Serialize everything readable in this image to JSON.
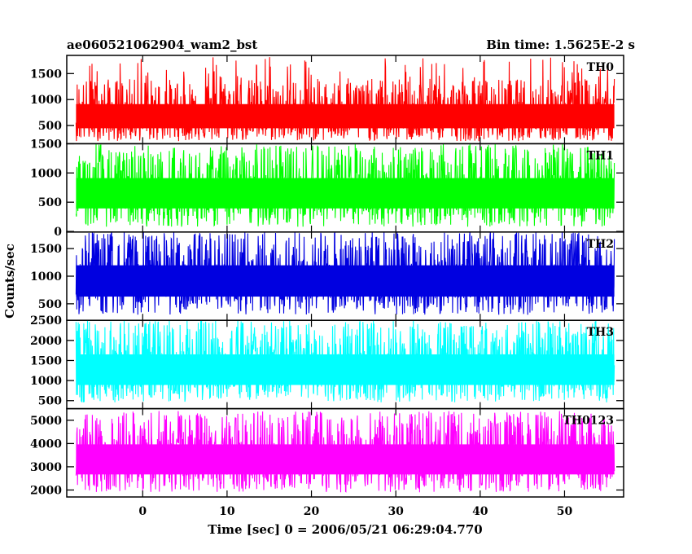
{
  "header": {
    "title": "ae060521062904_wam2_bst",
    "bin_time": "Bin time: 1.5625E-2 s"
  },
  "chart_data": {
    "type": "line",
    "xlabel": "Time [sec] 0 = 2006/05/21 06:29:04.770",
    "ylabel": "Counts/sec",
    "xlim": [
      -9,
      57
    ],
    "x_ticks": [
      "0",
      "10",
      "20",
      "30",
      "40",
      "50"
    ],
    "x_tick_values": [
      0,
      10,
      20,
      30,
      40,
      50
    ],
    "data_x_range": [
      -7.9,
      55.9
    ],
    "grid": false,
    "panels": [
      {
        "name": "TH0",
        "color": "#ff0000",
        "ylim": [
          150,
          1850
        ],
        "y_ticks": [
          "500",
          "1000",
          "1500"
        ],
        "y_tick_values": [
          500,
          1000,
          1500
        ],
        "mean": 650,
        "typical_min": 200,
        "typical_max": 1400,
        "peak": 1850
      },
      {
        "name": "TH1",
        "color": "#00ff00",
        "ylim": [
          -10,
          1500
        ],
        "y_ticks": [
          "0",
          "500",
          "1000",
          "1500"
        ],
        "y_tick_values": [
          0,
          500,
          1000,
          1500
        ],
        "mean": 650,
        "typical_min": 80,
        "typical_max": 1400,
        "peak": 1500
      },
      {
        "name": "TH2",
        "color": "#0000e0",
        "ylim": [
          200,
          1800
        ],
        "y_ticks": [
          "500",
          "1000",
          "1500"
        ],
        "y_tick_values": [
          500,
          1000,
          1500
        ],
        "mean": 900,
        "typical_min": 300,
        "typical_max": 1750,
        "peak": 1800
      },
      {
        "name": "TH3",
        "color": "#00ffff",
        "ylim": [
          300,
          2500
        ],
        "y_ticks": [
          "500",
          "1000",
          "1500",
          "2000",
          "2500"
        ],
        "y_tick_values": [
          500,
          1000,
          1500,
          2000,
          2500
        ],
        "mean": 1250,
        "typical_min": 450,
        "typical_max": 2400,
        "peak": 2500
      },
      {
        "name": "TH0123",
        "color": "#ff00ff",
        "ylim": [
          1700,
          5500
        ],
        "y_ticks": [
          "2000",
          "3000",
          "4000",
          "5000"
        ],
        "y_tick_values": [
          2000,
          3000,
          4000,
          5000
        ],
        "mean": 3300,
        "typical_min": 1900,
        "typical_max": 5200,
        "peak": 5400
      }
    ]
  }
}
